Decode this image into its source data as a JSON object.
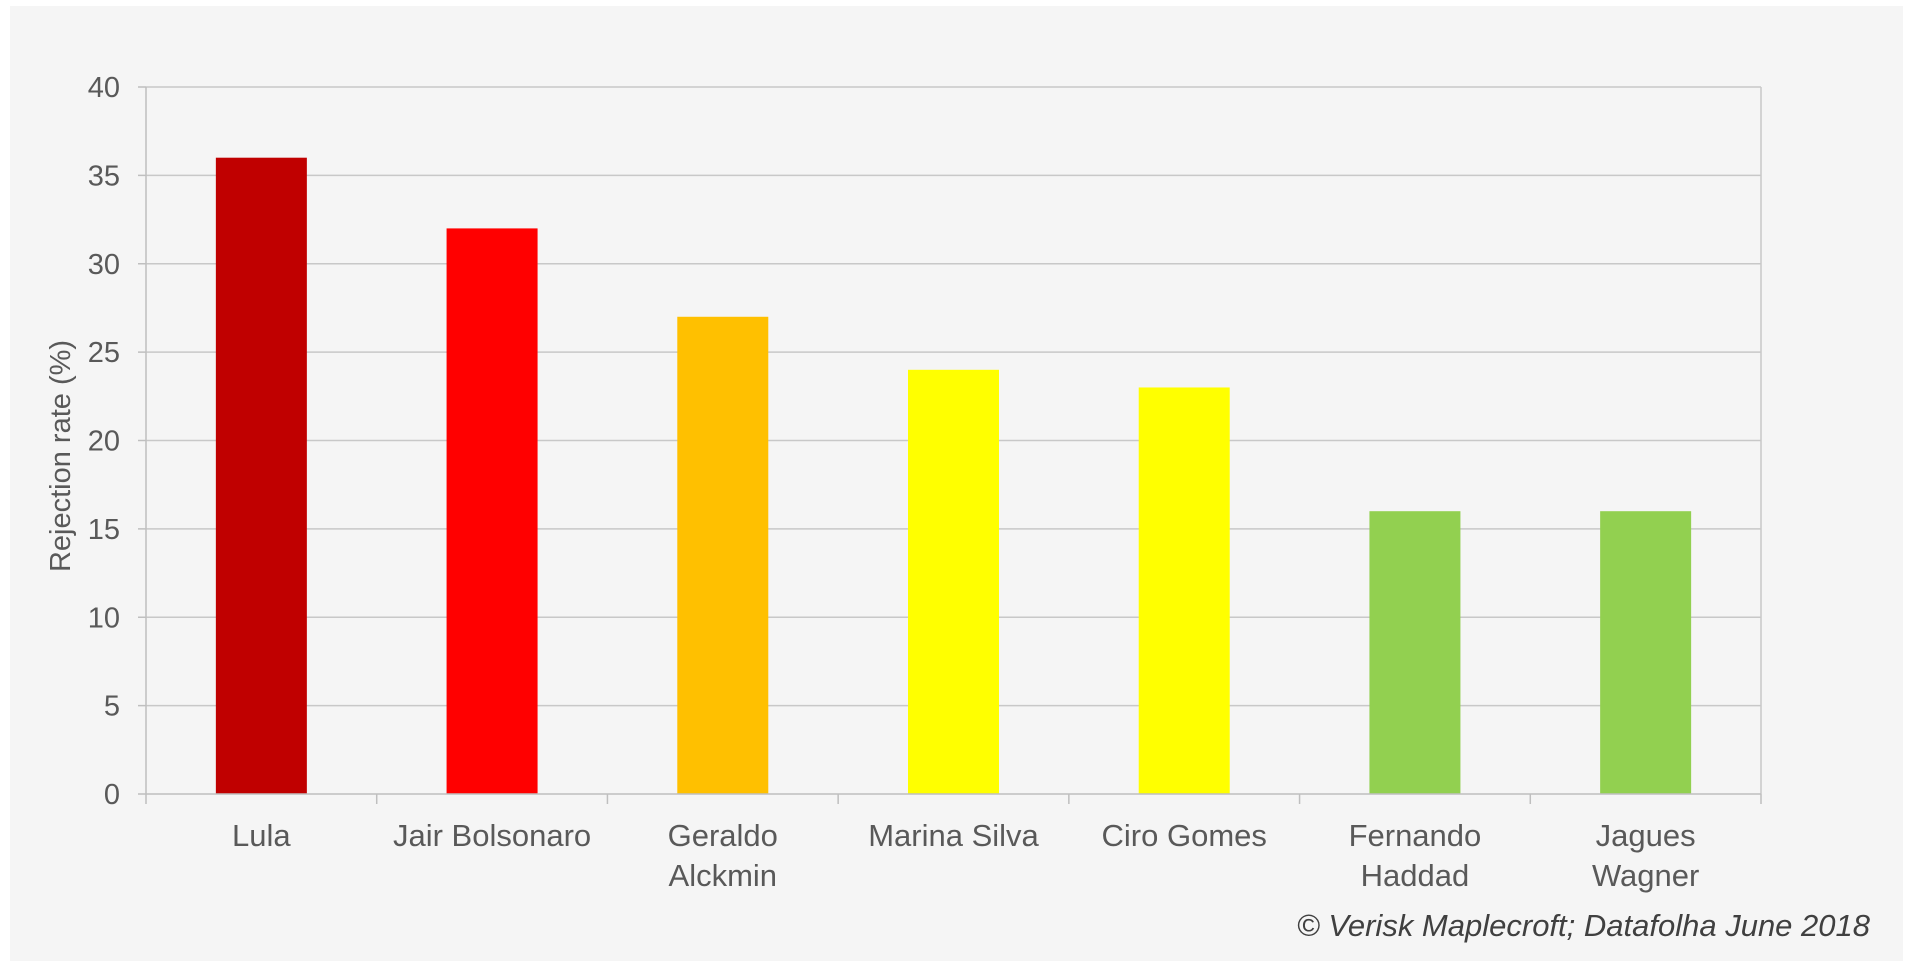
{
  "chart_data": {
    "type": "bar",
    "title": "",
    "xlabel": "",
    "ylabel": "Rejection rate (%)",
    "ylim": [
      0,
      40
    ],
    "yticks": [
      0,
      5,
      10,
      15,
      20,
      25,
      30,
      35,
      40
    ],
    "grid": true,
    "legend": "none",
    "categories": [
      [
        "Lula"
      ],
      [
        "Jair Bolsonaro"
      ],
      [
        "Geraldo",
        "Alckmin"
      ],
      [
        "Marina Silva"
      ],
      [
        "Ciro Gomes"
      ],
      [
        "Fernando",
        "Haddad"
      ],
      [
        "Jagues",
        "Wagner"
      ]
    ],
    "values": [
      36,
      32,
      27,
      24,
      23,
      16,
      16
    ],
    "colors": [
      "#c00000",
      "#ff0000",
      "#ffc000",
      "#ffff00",
      "#ffff00",
      "#92d050",
      "#92d050"
    ]
  },
  "source_text": "© Verisk Maplecroft; Datafolha June 2018"
}
